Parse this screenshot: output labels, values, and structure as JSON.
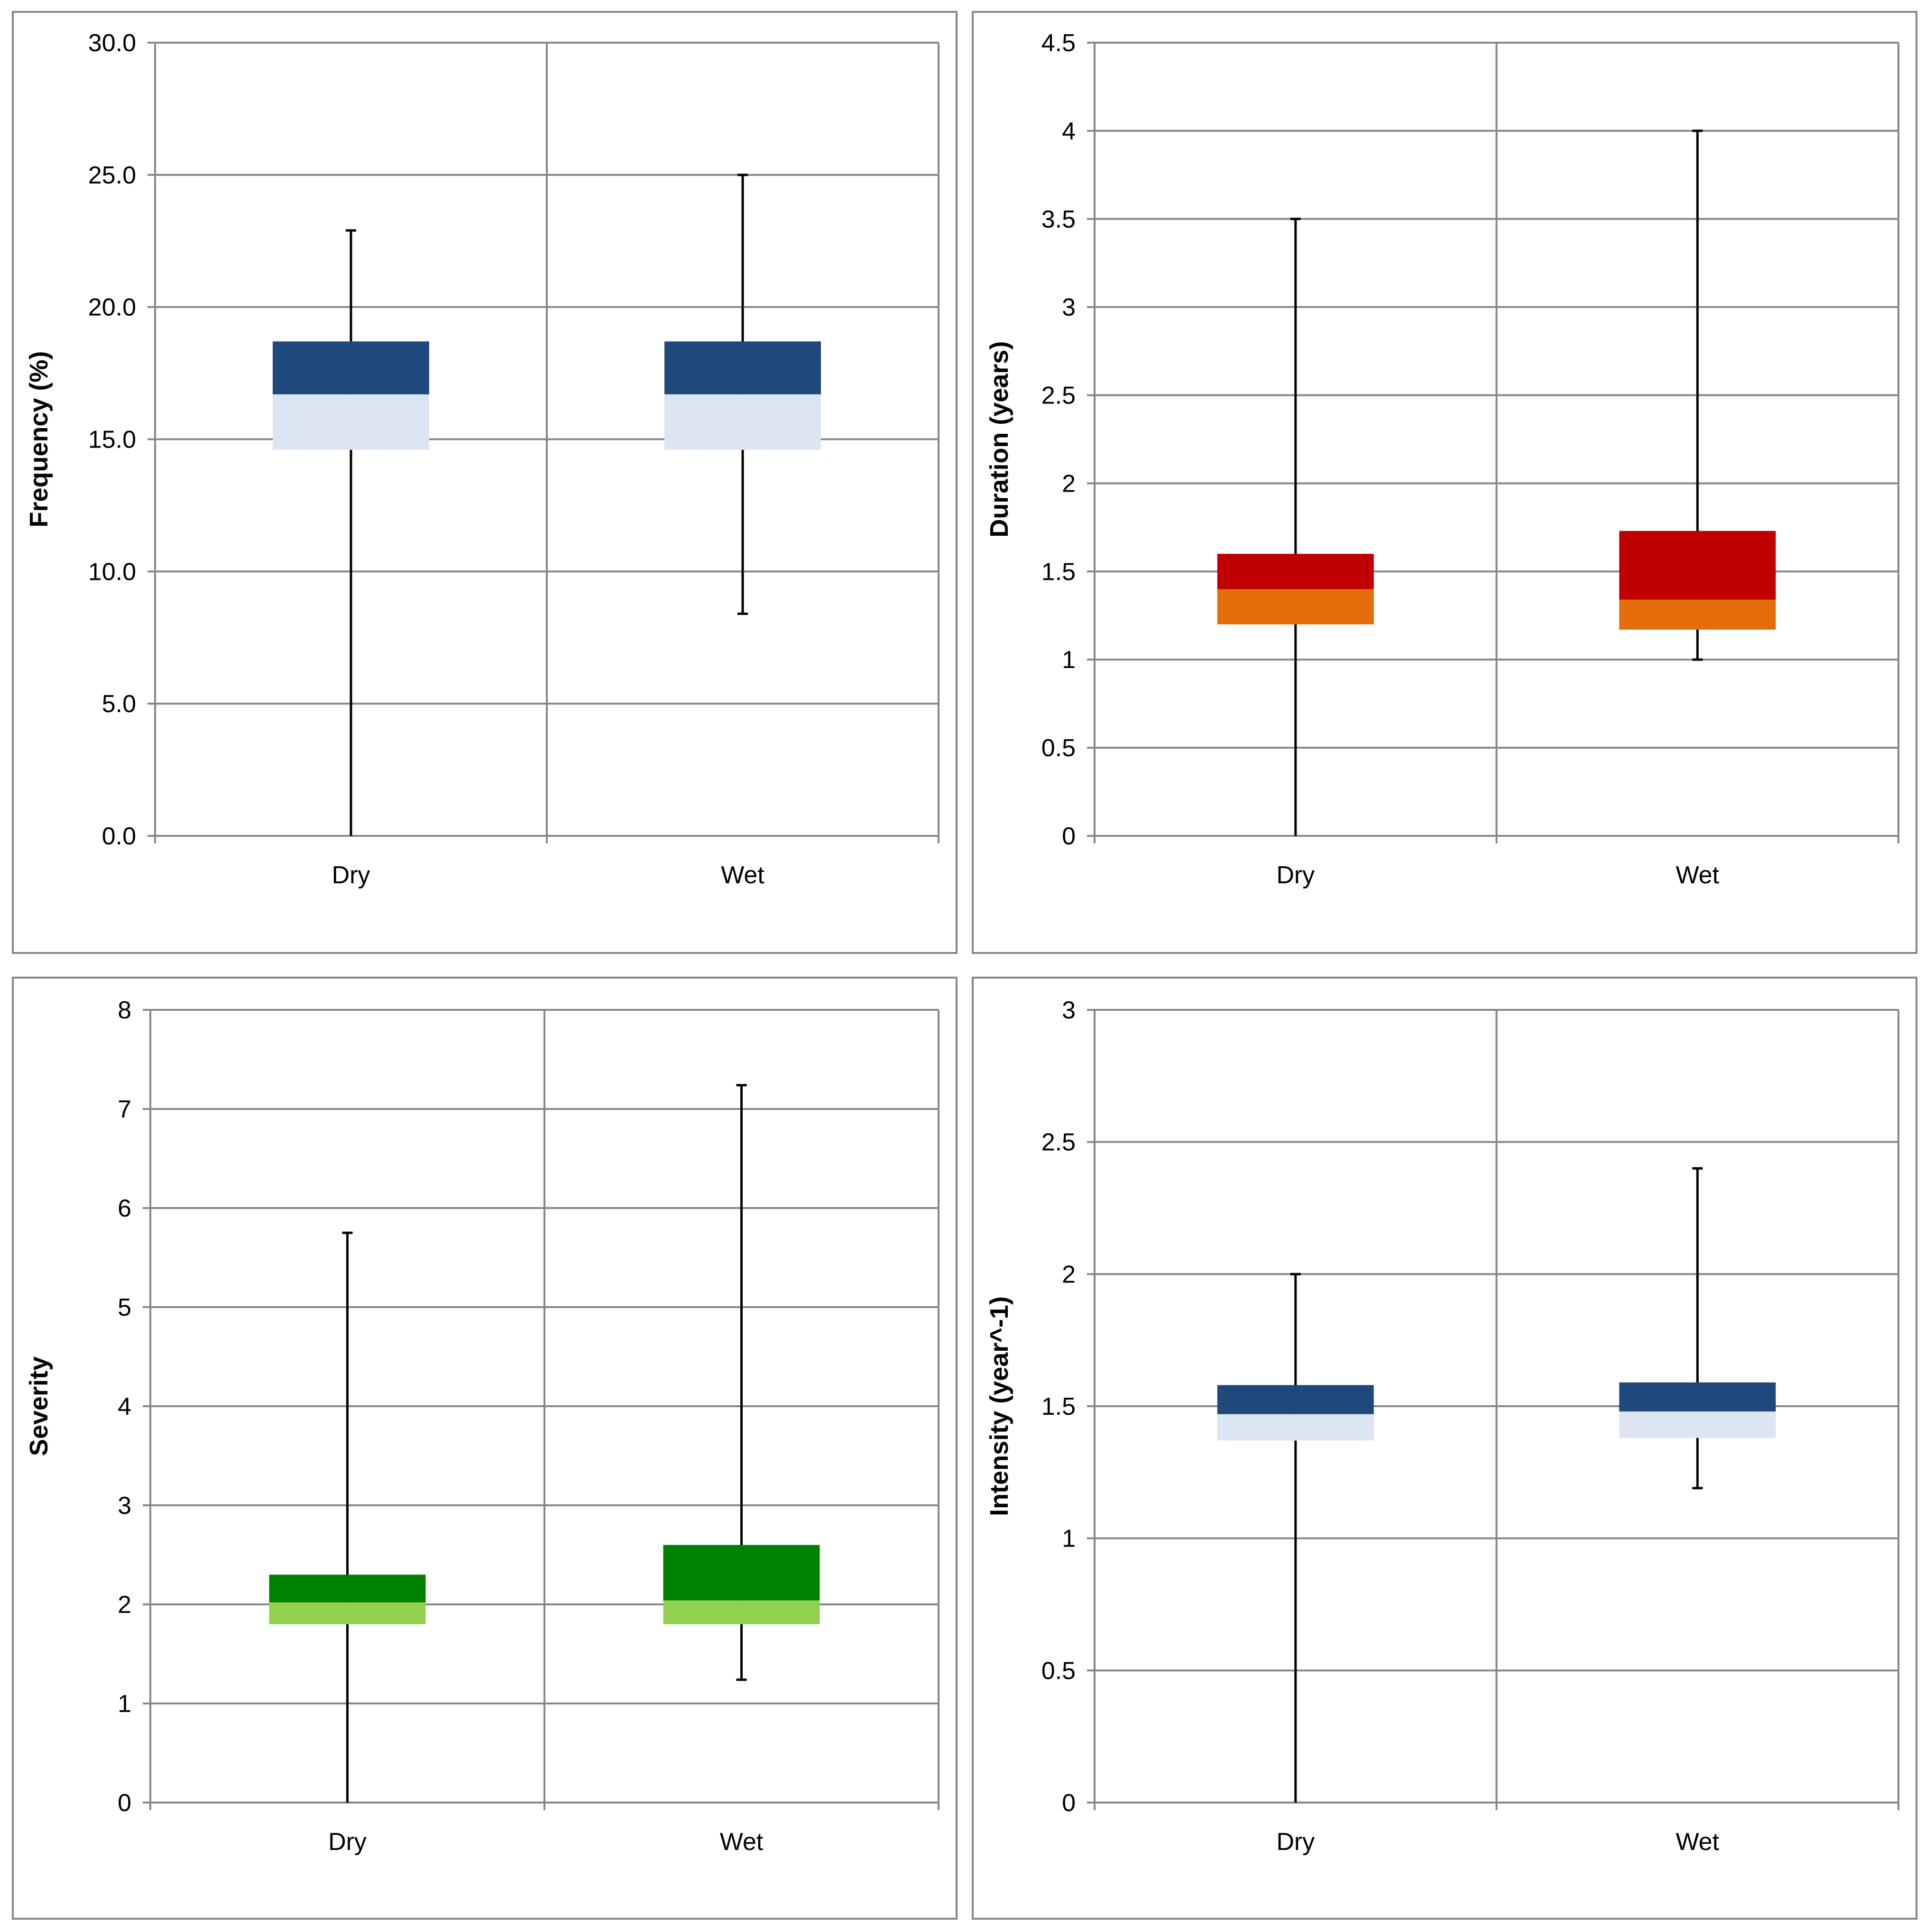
{
  "chart_data": [
    {
      "type": "boxplot",
      "categories": [
        "Dry",
        "Wet"
      ],
      "ylabel": "Frequency (%)",
      "ylim": [
        0,
        30
      ],
      "y_ticks": [
        "0.0",
        "5.0",
        "10.0",
        "15.0",
        "20.0",
        "25.0",
        "30.0"
      ],
      "grid": true,
      "boxes": [
        {
          "category": "Dry",
          "min": 0.0,
          "q1": 14.6,
          "median": 16.7,
          "q3": 18.7,
          "max": 22.9
        },
        {
          "category": "Wet",
          "min": 8.4,
          "q1": 14.6,
          "median": 16.7,
          "q3": 18.7,
          "max": 25.0
        }
      ],
      "colors": {
        "upper": "#1f497d",
        "lower": "#dce6f2"
      }
    },
    {
      "type": "boxplot",
      "categories": [
        "Dry",
        "Wet"
      ],
      "ylabel": "Duration (years)",
      "ylim": [
        0,
        4.5
      ],
      "y_ticks": [
        "0",
        "0.5",
        "1",
        "1.5",
        "2",
        "2.5",
        "3",
        "3.5",
        "4",
        "4.5"
      ],
      "grid": true,
      "boxes": [
        {
          "category": "Dry",
          "min": 0.0,
          "q1": 1.2,
          "median": 1.4,
          "q3": 1.6,
          "max": 3.5
        },
        {
          "category": "Wet",
          "min": 1.0,
          "q1": 1.17,
          "median": 1.34,
          "q3": 1.73,
          "max": 4.0
        }
      ],
      "colors": {
        "upper": "#c00000",
        "lower": "#e46c0a"
      }
    },
    {
      "type": "boxplot",
      "categories": [
        "Dry",
        "Wet"
      ],
      "ylabel": "Severity",
      "ylim": [
        0,
        8
      ],
      "y_ticks": [
        "0",
        "1",
        "2",
        "3",
        "4",
        "5",
        "6",
        "7",
        "8"
      ],
      "grid": true,
      "boxes": [
        {
          "category": "Dry",
          "min": 0.0,
          "q1": 1.8,
          "median": 2.02,
          "q3": 2.3,
          "max": 5.75
        },
        {
          "category": "Wet",
          "min": 1.24,
          "q1": 1.8,
          "median": 2.04,
          "q3": 2.6,
          "max": 7.24
        }
      ],
      "colors": {
        "upper": "#008000",
        "lower": "#92d050"
      }
    },
    {
      "type": "boxplot",
      "categories": [
        "Dry",
        "Wet"
      ],
      "ylabel": "Intensity (year^-1)",
      "ylim": [
        0,
        3
      ],
      "y_ticks": [
        "0",
        "0.5",
        "1",
        "1.5",
        "2",
        "2.5",
        "3"
      ],
      "grid": true,
      "boxes": [
        {
          "category": "Dry",
          "min": 0.0,
          "q1": 1.37,
          "median": 1.47,
          "q3": 1.58,
          "max": 2.0
        },
        {
          "category": "Wet",
          "min": 1.19,
          "q1": 1.38,
          "median": 1.48,
          "q3": 1.59,
          "max": 2.4
        }
      ],
      "colors": {
        "upper": "#1f497d",
        "lower": "#dce6f2"
      }
    }
  ]
}
